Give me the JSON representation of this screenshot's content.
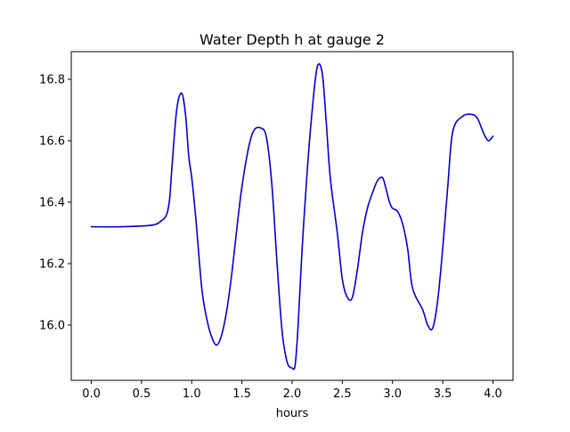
{
  "chart_data": {
    "type": "line",
    "title": "Water Depth h at gauge 2",
    "xlabel": "hours",
    "ylabel": "",
    "xlim": [
      -0.2,
      4.2
    ],
    "ylim": [
      15.82,
      16.89
    ],
    "xticks": [
      0.0,
      0.5,
      1.0,
      1.5,
      2.0,
      2.5,
      3.0,
      3.5,
      4.0
    ],
    "xtick_labels": [
      "0.0",
      "0.5",
      "1.0",
      "1.5",
      "2.0",
      "2.5",
      "3.0",
      "3.5",
      "4.0"
    ],
    "yticks": [
      16.0,
      16.2,
      16.4,
      16.6,
      16.8
    ],
    "ytick_labels": [
      "16.0",
      "16.2",
      "16.4",
      "16.6",
      "16.8"
    ],
    "grid": false,
    "series": [
      {
        "name": "h",
        "color": "#0000cc",
        "x": [
          0.0,
          0.3,
          0.6,
          0.7,
          0.75,
          0.78,
          0.8,
          0.85,
          0.9,
          0.94,
          0.97,
          1.0,
          1.04,
          1.1,
          1.15,
          1.2,
          1.25,
          1.3,
          1.35,
          1.4,
          1.5,
          1.6,
          1.7,
          1.75,
          1.8,
          1.85,
          1.9,
          1.95,
          2.0,
          2.03,
          2.06,
          2.1,
          2.15,
          2.2,
          2.25,
          2.3,
          2.34,
          2.38,
          2.45,
          2.5,
          2.55,
          2.6,
          2.65,
          2.7,
          2.75,
          2.8,
          2.85,
          2.9,
          2.93,
          2.97,
          3.0,
          3.05,
          3.1,
          3.15,
          3.2,
          3.3,
          3.35,
          3.4,
          3.45,
          3.5,
          3.55,
          3.6,
          3.7,
          3.8,
          3.85,
          3.9,
          3.93,
          3.96,
          4.0
        ],
        "y": [
          16.32,
          16.32,
          16.325,
          16.34,
          16.36,
          16.41,
          16.5,
          16.7,
          16.755,
          16.68,
          16.55,
          16.48,
          16.35,
          16.12,
          16.02,
          15.96,
          15.935,
          15.97,
          16.05,
          16.17,
          16.45,
          16.62,
          16.64,
          16.6,
          16.45,
          16.2,
          15.98,
          15.88,
          15.86,
          15.87,
          16.0,
          16.25,
          16.5,
          16.7,
          16.84,
          16.82,
          16.66,
          16.48,
          16.3,
          16.15,
          16.09,
          16.09,
          16.18,
          16.3,
          16.38,
          16.43,
          16.47,
          16.48,
          16.45,
          16.4,
          16.38,
          16.37,
          16.33,
          16.25,
          16.12,
          16.05,
          16.0,
          15.99,
          16.08,
          16.25,
          16.45,
          16.63,
          16.68,
          16.685,
          16.67,
          16.63,
          16.61,
          16.6,
          16.615
        ]
      }
    ]
  }
}
